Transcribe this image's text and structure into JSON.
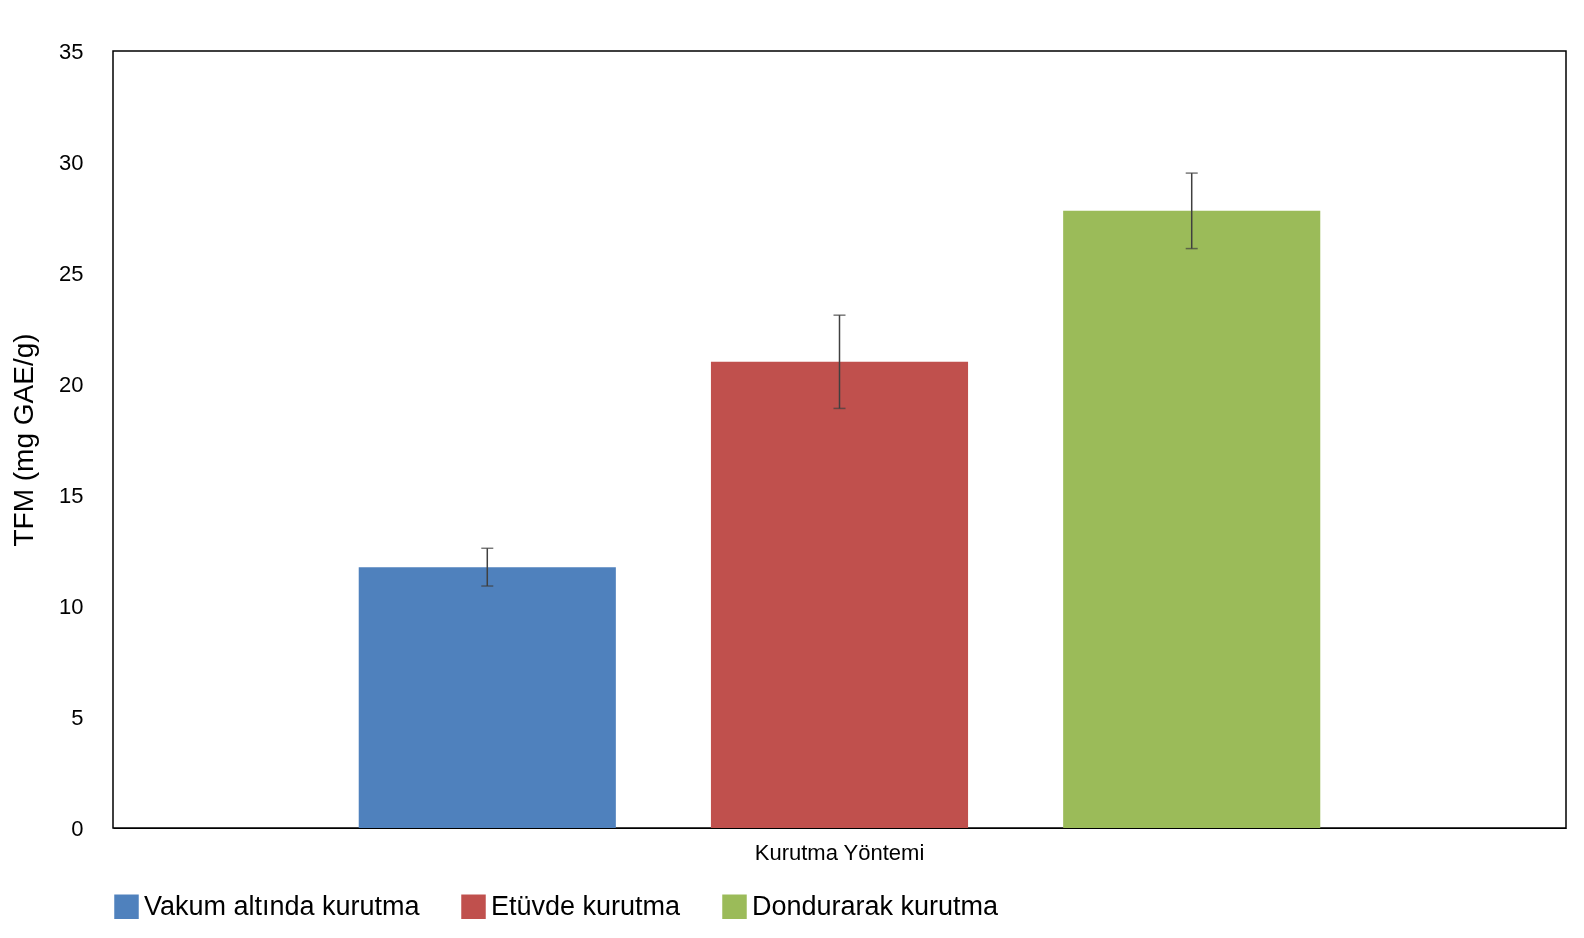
{
  "chart_data": {
    "type": "bar",
    "categories": [
      "Kurutma Yöntemi"
    ],
    "ylabel": "TFM (mg GAE/g)",
    "series": [
      {
        "name": "Vakum altında kurutma",
        "color": "#4f81bd",
        "values": [
          11.75
        ],
        "errors": [
          0.85
        ]
      },
      {
        "name": "Etüvde kurutma",
        "color": "#c0504d",
        "values": [
          21.0
        ],
        "errors": [
          2.1
        ]
      },
      {
        "name": "Dondurarak kurutma",
        "color": "#9bbb59",
        "values": [
          27.8
        ],
        "errors": [
          1.7
        ]
      }
    ],
    "ylim": [
      0,
      35
    ],
    "yticks": [
      0,
      5,
      10,
      15,
      20,
      25,
      30,
      35
    ],
    "grid": false,
    "legend": "bottom"
  }
}
